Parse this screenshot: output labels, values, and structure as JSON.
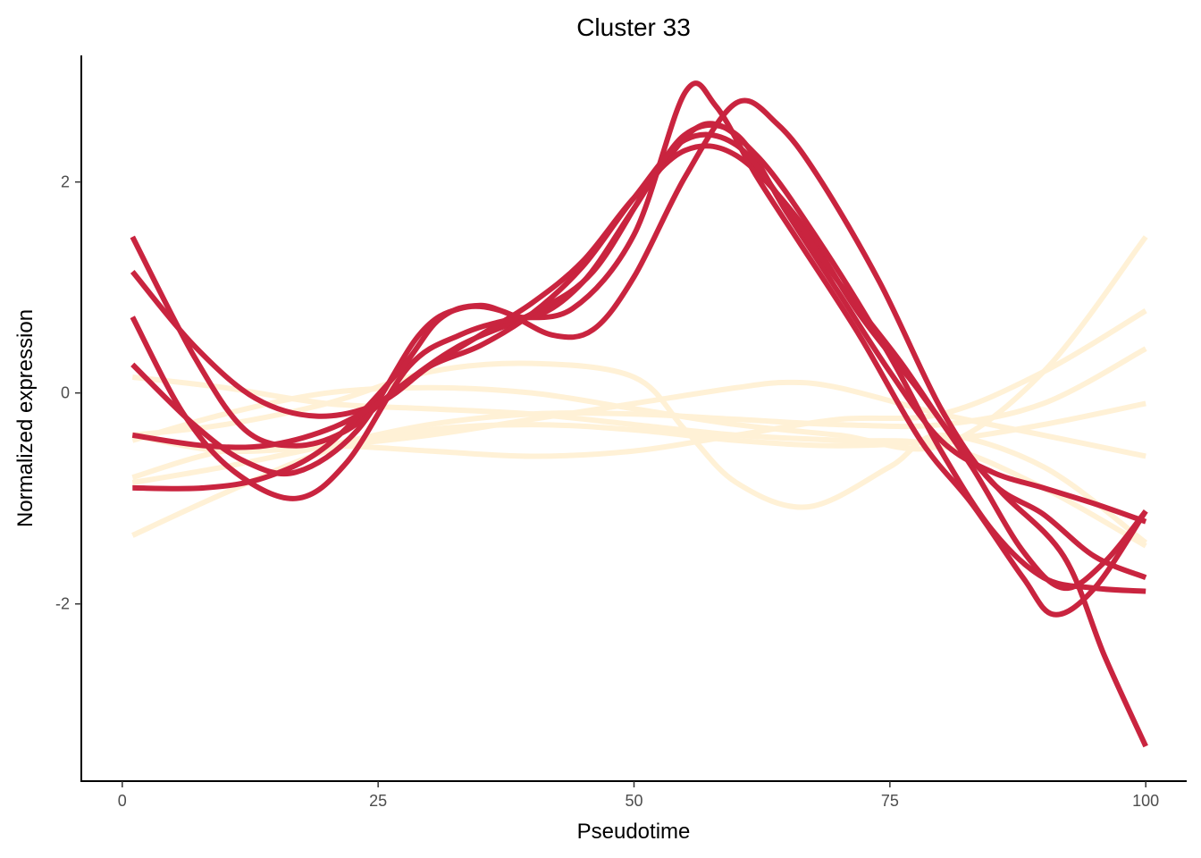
{
  "chart_data": {
    "type": "line",
    "title": "Cluster 33",
    "xlabel": "Pseudotime",
    "ylabel": "Normalized expression",
    "xlim": [
      -4,
      104
    ],
    "ylim": [
      -3.68,
      3.2
    ],
    "x_ticks": [
      0,
      25,
      50,
      75,
      100
    ],
    "x_tick_labels": [
      "0",
      "25",
      "50",
      "75",
      "100"
    ],
    "y_ticks": [
      2,
      0,
      -2
    ],
    "y_tick_labels": [
      "2",
      "0",
      "-2"
    ],
    "grid": false,
    "legend": "none",
    "colors": {
      "highlight": "#c9243f",
      "background": "#fff1d6"
    },
    "series": [
      {
        "group": "background",
        "points": [
          [
            1,
            -1.35
          ],
          [
            10,
            -0.95
          ],
          [
            20,
            -0.55
          ],
          [
            30,
            -0.35
          ],
          [
            40,
            -0.3
          ],
          [
            50,
            -0.35
          ],
          [
            60,
            -0.45
          ],
          [
            70,
            -0.5
          ],
          [
            80,
            -0.45
          ],
          [
            90,
            -0.3
          ],
          [
            100,
            -0.1
          ]
        ]
      },
      {
        "group": "background",
        "points": [
          [
            1,
            -0.85
          ],
          [
            10,
            -0.7
          ],
          [
            20,
            -0.5
          ],
          [
            30,
            -0.3
          ],
          [
            40,
            -0.2
          ],
          [
            50,
            -0.2
          ],
          [
            60,
            -0.25
          ],
          [
            70,
            -0.3
          ],
          [
            80,
            -0.3
          ],
          [
            90,
            -0.1
          ],
          [
            100,
            0.42
          ]
        ]
      },
      {
        "group": "background",
        "points": [
          [
            1,
            -0.8
          ],
          [
            10,
            -0.55
          ],
          [
            20,
            -0.5
          ],
          [
            30,
            -0.55
          ],
          [
            40,
            -0.6
          ],
          [
            50,
            -0.55
          ],
          [
            60,
            -0.4
          ],
          [
            70,
            -0.25
          ],
          [
            80,
            -0.2
          ],
          [
            90,
            0.2
          ],
          [
            100,
            0.78
          ]
        ]
      },
      {
        "group": "background",
        "points": [
          [
            1,
            -0.4
          ],
          [
            10,
            -0.55
          ],
          [
            20,
            -0.5
          ],
          [
            30,
            -0.4
          ],
          [
            40,
            -0.25
          ],
          [
            50,
            -0.1
          ],
          [
            60,
            0.05
          ],
          [
            65,
            0.1
          ],
          [
            70,
            0.05
          ],
          [
            80,
            -0.2
          ],
          [
            90,
            -0.4
          ],
          [
            100,
            -0.6
          ]
        ]
      },
      {
        "group": "background",
        "points": [
          [
            1,
            -0.45
          ],
          [
            10,
            -0.2
          ],
          [
            20,
            0.0
          ],
          [
            30,
            0.05
          ],
          [
            40,
            0.0
          ],
          [
            50,
            -0.15
          ],
          [
            60,
            -0.3
          ],
          [
            70,
            -0.4
          ],
          [
            80,
            -0.5
          ],
          [
            90,
            0.2
          ],
          [
            100,
            1.48
          ]
        ]
      },
      {
        "group": "background",
        "points": [
          [
            1,
            0.15
          ],
          [
            10,
            0.05
          ],
          [
            20,
            -0.1
          ],
          [
            30,
            -0.15
          ],
          [
            40,
            -0.2
          ],
          [
            50,
            -0.3
          ],
          [
            60,
            -0.4
          ],
          [
            70,
            -0.45
          ],
          [
            80,
            -0.5
          ],
          [
            90,
            -0.9
          ],
          [
            100,
            -1.45
          ]
        ]
      },
      {
        "group": "background",
        "points": [
          [
            1,
            -0.4
          ],
          [
            10,
            -0.3
          ],
          [
            20,
            -0.1
          ],
          [
            30,
            0.2
          ],
          [
            40,
            0.28
          ],
          [
            50,
            0.15
          ],
          [
            55,
            -0.35
          ],
          [
            60,
            -0.85
          ],
          [
            67,
            -1.08
          ],
          [
            75,
            -0.7
          ],
          [
            80,
            -0.4
          ],
          [
            90,
            -0.7
          ],
          [
            100,
            -1.42
          ]
        ]
      },
      {
        "group": "highlight",
        "points": [
          [
            1,
            1.48
          ],
          [
            7,
            0.35
          ],
          [
            12,
            -0.35
          ],
          [
            17,
            -0.5
          ],
          [
            22,
            -0.35
          ],
          [
            27,
            0.05
          ],
          [
            33,
            0.45
          ],
          [
            40,
            0.75
          ],
          [
            46,
            1.15
          ],
          [
            52,
            2.05
          ],
          [
            57,
            2.55
          ],
          [
            62,
            2.25
          ],
          [
            68,
            1.45
          ],
          [
            75,
            0.35
          ],
          [
            80,
            -0.55
          ],
          [
            85,
            -1.3
          ],
          [
            90,
            -1.75
          ],
          [
            95,
            -1.85
          ],
          [
            100,
            -1.88
          ]
        ]
      },
      {
        "group": "highlight",
        "points": [
          [
            1,
            1.15
          ],
          [
            7,
            0.45
          ],
          [
            13,
            -0.05
          ],
          [
            19,
            -0.22
          ],
          [
            25,
            -0.1
          ],
          [
            30,
            0.25
          ],
          [
            35,
            0.55
          ],
          [
            40,
            0.85
          ],
          [
            45,
            1.25
          ],
          [
            50,
            1.85
          ],
          [
            55,
            2.3
          ],
          [
            60,
            2.25
          ],
          [
            66,
            1.65
          ],
          [
            72,
            0.75
          ],
          [
            78,
            0.0
          ],
          [
            83,
            -0.7
          ],
          [
            88,
            -1.5
          ],
          [
            92,
            -1.85
          ],
          [
            96,
            -1.6
          ],
          [
            100,
            -1.12
          ]
        ]
      },
      {
        "group": "highlight",
        "points": [
          [
            1,
            0.72
          ],
          [
            6,
            -0.2
          ],
          [
            11,
            -0.75
          ],
          [
            17,
            -1.0
          ],
          [
            22,
            -0.65
          ],
          [
            28,
            0.25
          ],
          [
            33,
            0.55
          ],
          [
            38,
            0.7
          ],
          [
            44,
            0.8
          ],
          [
            50,
            1.5
          ],
          [
            55,
            2.85
          ],
          [
            58,
            2.72
          ],
          [
            62,
            2.05
          ],
          [
            66,
            1.45
          ],
          [
            72,
            0.55
          ],
          [
            78,
            -0.45
          ],
          [
            83,
            -1.05
          ],
          [
            88,
            -1.75
          ],
          [
            91,
            -2.1
          ],
          [
            95,
            -1.85
          ],
          [
            100,
            -1.12
          ]
        ]
      },
      {
        "group": "highlight",
        "points": [
          [
            1,
            0.27
          ],
          [
            7,
            -0.3
          ],
          [
            12,
            -0.65
          ],
          [
            17,
            -0.75
          ],
          [
            23,
            -0.35
          ],
          [
            29,
            0.55
          ],
          [
            33,
            0.8
          ],
          [
            37,
            0.78
          ],
          [
            42,
            0.55
          ],
          [
            46,
            0.6
          ],
          [
            50,
            1.1
          ],
          [
            55,
            2.05
          ],
          [
            60,
            2.75
          ],
          [
            64,
            2.55
          ],
          [
            68,
            2.05
          ],
          [
            74,
            1.05
          ],
          [
            80,
            -0.15
          ],
          [
            85,
            -0.85
          ],
          [
            90,
            -1.15
          ],
          [
            95,
            -1.55
          ],
          [
            100,
            -1.75
          ]
        ]
      },
      {
        "group": "highlight",
        "points": [
          [
            1,
            -0.9
          ],
          [
            8,
            -0.9
          ],
          [
            14,
            -0.8
          ],
          [
            20,
            -0.5
          ],
          [
            27,
            0.2
          ],
          [
            31,
            0.7
          ],
          [
            35,
            0.83
          ],
          [
            40,
            0.72
          ],
          [
            45,
            1.05
          ],
          [
            50,
            1.75
          ],
          [
            55,
            2.45
          ],
          [
            60,
            2.45
          ],
          [
            65,
            1.7
          ],
          [
            70,
            0.95
          ],
          [
            75,
            0.2
          ],
          [
            80,
            -0.45
          ],
          [
            85,
            -0.75
          ],
          [
            90,
            -0.9
          ],
          [
            95,
            -1.05
          ],
          [
            100,
            -1.22
          ]
        ]
      },
      {
        "group": "highlight",
        "points": [
          [
            1,
            -0.4
          ],
          [
            8,
            -0.5
          ],
          [
            14,
            -0.5
          ],
          [
            20,
            -0.35
          ],
          [
            25,
            -0.1
          ],
          [
            30,
            0.25
          ],
          [
            35,
            0.45
          ],
          [
            40,
            0.75
          ],
          [
            45,
            1.2
          ],
          [
            50,
            1.85
          ],
          [
            55,
            2.4
          ],
          [
            60,
            2.35
          ],
          [
            65,
            1.75
          ],
          [
            70,
            1.05
          ],
          [
            76,
            0.3
          ],
          [
            81,
            -0.4
          ],
          [
            86,
            -0.95
          ],
          [
            92,
            -1.55
          ],
          [
            96,
            -2.5
          ],
          [
            100,
            -3.35
          ]
        ]
      }
    ]
  }
}
